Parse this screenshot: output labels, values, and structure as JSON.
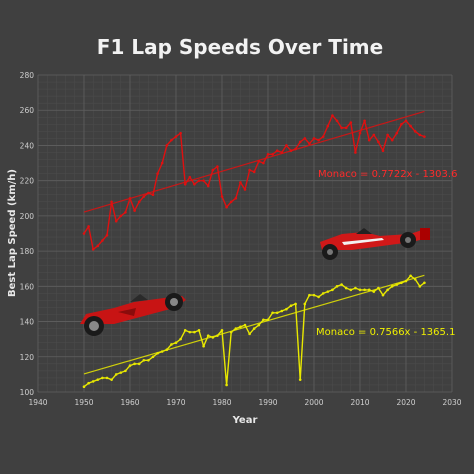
{
  "chart_data": {
    "type": "line",
    "title": "F1 Lap Speeds Over Time",
    "xlabel": "Year",
    "ylabel": "Best Lap Speed (km/h)",
    "xlim": [
      1940,
      2030
    ],
    "ylim": [
      100,
      280
    ],
    "xticks": [
      1940,
      1950,
      1960,
      1970,
      1980,
      1990,
      2000,
      2010,
      2020,
      2030
    ],
    "yticks": [
      100,
      120,
      140,
      160,
      180,
      200,
      220,
      240,
      260,
      280
    ],
    "grid": true,
    "series": [
      {
        "color": "#e01010",
        "x": [
          1950,
          1951,
          1952,
          1953,
          1954,
          1955,
          1956,
          1957,
          1958,
          1959,
          1960,
          1961,
          1962,
          1963,
          1964,
          1965,
          1966,
          1967,
          1968,
          1969,
          1970,
          1971,
          1972,
          1973,
          1974,
          1975,
          1976,
          1977,
          1978,
          1979,
          1980,
          1981,
          1982,
          1983,
          1984,
          1985,
          1986,
          1987,
          1988,
          1989,
          1990,
          1991,
          1992,
          1993,
          1994,
          1995,
          1996,
          1997,
          1998,
          1999,
          2000,
          2001,
          2002,
          2003,
          2004,
          2005,
          2006,
          2007,
          2008,
          2009,
          2010,
          2011,
          2012,
          2013,
          2014,
          2015,
          2016,
          2017,
          2018,
          2019,
          2020,
          2021,
          2022,
          2023,
          2024
        ],
        "values": [
          190,
          194,
          181,
          183,
          186,
          189,
          208,
          197,
          200,
          202,
          210,
          203,
          208,
          211,
          213,
          212,
          224,
          230,
          240,
          243,
          245,
          247,
          218,
          222,
          218,
          220,
          220,
          217,
          226,
          228,
          211,
          205,
          208,
          210,
          219,
          215,
          226,
          225,
          231,
          230,
          235,
          235,
          237,
          236,
          240,
          237,
          238,
          242,
          244,
          241,
          244,
          243,
          245,
          251,
          257,
          254,
          250,
          250,
          253,
          236,
          247,
          254,
          243,
          246,
          242,
          237,
          246,
          243,
          247,
          252,
          254,
          251,
          248,
          246,
          245
        ],
        "trendline": {
          "label": "Monaco = 0.7722x - 1303.6",
          "slope": 0.7722,
          "intercept": -1303.6
        }
      },
      {
        "color": "#e8e800",
        "x": [
          1950,
          1951,
          1952,
          1953,
          1954,
          1955,
          1956,
          1957,
          1958,
          1959,
          1960,
          1961,
          1962,
          1963,
          1964,
          1965,
          1966,
          1967,
          1968,
          1969,
          1970,
          1971,
          1972,
          1973,
          1974,
          1975,
          1976,
          1977,
          1978,
          1979,
          1980,
          1981,
          1982,
          1983,
          1984,
          1985,
          1986,
          1987,
          1988,
          1989,
          1990,
          1991,
          1992,
          1993,
          1994,
          1995,
          1996,
          1997,
          1998,
          1999,
          2000,
          2001,
          2002,
          2003,
          2004,
          2005,
          2006,
          2007,
          2008,
          2009,
          2010,
          2011,
          2012,
          2013,
          2014,
          2015,
          2016,
          2017,
          2018,
          2019,
          2020,
          2021,
          2022,
          2023,
          2024
        ],
        "values": [
          103,
          105,
          106,
          107,
          108,
          108,
          107,
          110,
          111,
          112,
          115,
          116,
          116,
          118,
          118,
          120,
          122,
          123,
          124,
          127,
          128,
          130,
          135,
          134,
          134,
          135,
          126,
          132,
          131,
          132,
          135,
          104,
          134,
          136,
          137,
          138,
          133,
          136,
          138,
          141,
          141,
          145,
          145,
          146,
          147,
          149,
          150,
          107,
          150,
          155,
          155,
          154,
          156,
          157,
          158,
          160,
          161,
          159,
          158,
          159,
          158,
          158,
          158,
          157,
          159,
          155,
          158,
          160,
          161,
          162,
          163,
          166,
          164,
          160,
          162
        ],
        "trendline": {
          "label": "Monaco = 0.7566x - 1365.1",
          "slope": 0.7566,
          "intercept": -1365.1
        }
      }
    ]
  }
}
